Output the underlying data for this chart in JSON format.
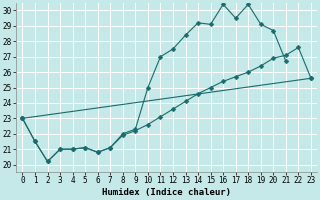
{
  "xlabel": "Humidex (Indice chaleur)",
  "xlim": [
    -0.5,
    23.5
  ],
  "ylim": [
    19.5,
    30.5
  ],
  "xticks": [
    0,
    1,
    2,
    3,
    4,
    5,
    6,
    7,
    8,
    9,
    10,
    11,
    12,
    13,
    14,
    15,
    16,
    17,
    18,
    19,
    20,
    21,
    22,
    23
  ],
  "yticks": [
    20,
    21,
    22,
    23,
    24,
    25,
    26,
    27,
    28,
    29,
    30
  ],
  "bg_color": "#c5e8e8",
  "line_color": "#1a6b6b",
  "grid_color": "#ffffff",
  "line1_y": [
    23.0,
    21.5,
    20.2,
    21.0,
    21.0,
    21.1,
    20.8,
    21.1,
    22.0,
    22.3,
    25.0,
    27.0,
    27.5,
    28.4,
    29.2,
    29.1,
    30.4,
    29.5,
    30.4,
    29.1,
    28.7,
    26.7,
    null,
    null
  ],
  "line2_y": [
    23.0,
    21.5,
    20.2,
    21.0,
    21.0,
    21.1,
    20.8,
    21.1,
    21.9,
    22.2,
    22.6,
    23.1,
    23.6,
    24.1,
    24.6,
    25.0,
    25.4,
    25.7,
    26.0,
    26.4,
    26.9,
    27.1,
    27.6,
    25.6
  ],
  "line3_x": [
    0,
    23
  ],
  "line3_y": [
    23.0,
    25.6
  ],
  "marker": "D",
  "markersize": 2.5,
  "linewidth": 0.8,
  "tick_fontsize": 5.5,
  "xlabel_fontsize": 6.5
}
